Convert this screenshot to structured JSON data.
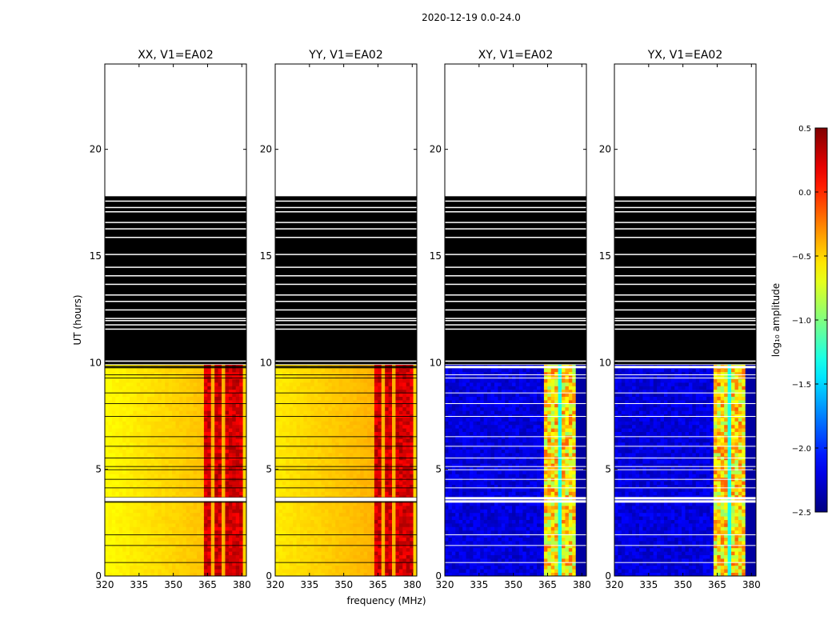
{
  "chart_data": {
    "type": "heatmap",
    "suptitle": "2020-12-19 0.0-24.0",
    "xlabel": "frequency (MHz)",
    "ylabel": "UT (hours)",
    "xlim": [
      320,
      382
    ],
    "ylim": [
      0,
      24
    ],
    "xticks": [
      "320",
      "335",
      "350",
      "365",
      "380"
    ],
    "xtick_values": [
      320,
      335,
      350,
      365,
      380
    ],
    "yticks": [
      "0",
      "5",
      "10",
      "15",
      "20"
    ],
    "ytick_values": [
      0,
      5,
      10,
      15,
      20
    ],
    "panels": [
      {
        "title": "XX, V1=EA02",
        "kind": "auto"
      },
      {
        "title": "YY, V1=EA02",
        "kind": "auto"
      },
      {
        "title": "XY, V1=EA02",
        "kind": "cross"
      },
      {
        "title": "YX, V1=EA02",
        "kind": "cross"
      }
    ],
    "data_coverage_hours": {
      "observed": [
        0,
        9.9
      ],
      "flagged_black": [
        10.0,
        17.8
      ],
      "empty": [
        17.8,
        24
      ]
    },
    "rfi_band_mhz": [
      363,
      380
    ],
    "colorbar": {
      "label": "log₁₀ amplitude",
      "vmin": -2.5,
      "vmax": 0.5,
      "ticks": [
        "0.5",
        "0.0",
        "−0.5",
        "−1.0",
        "−1.5",
        "−2.0",
        "−2.5"
      ],
      "tick_values": [
        0.5,
        0.0,
        -0.5,
        -1.0,
        -1.5,
        -2.0,
        -2.5
      ],
      "colormap": "jet"
    }
  }
}
